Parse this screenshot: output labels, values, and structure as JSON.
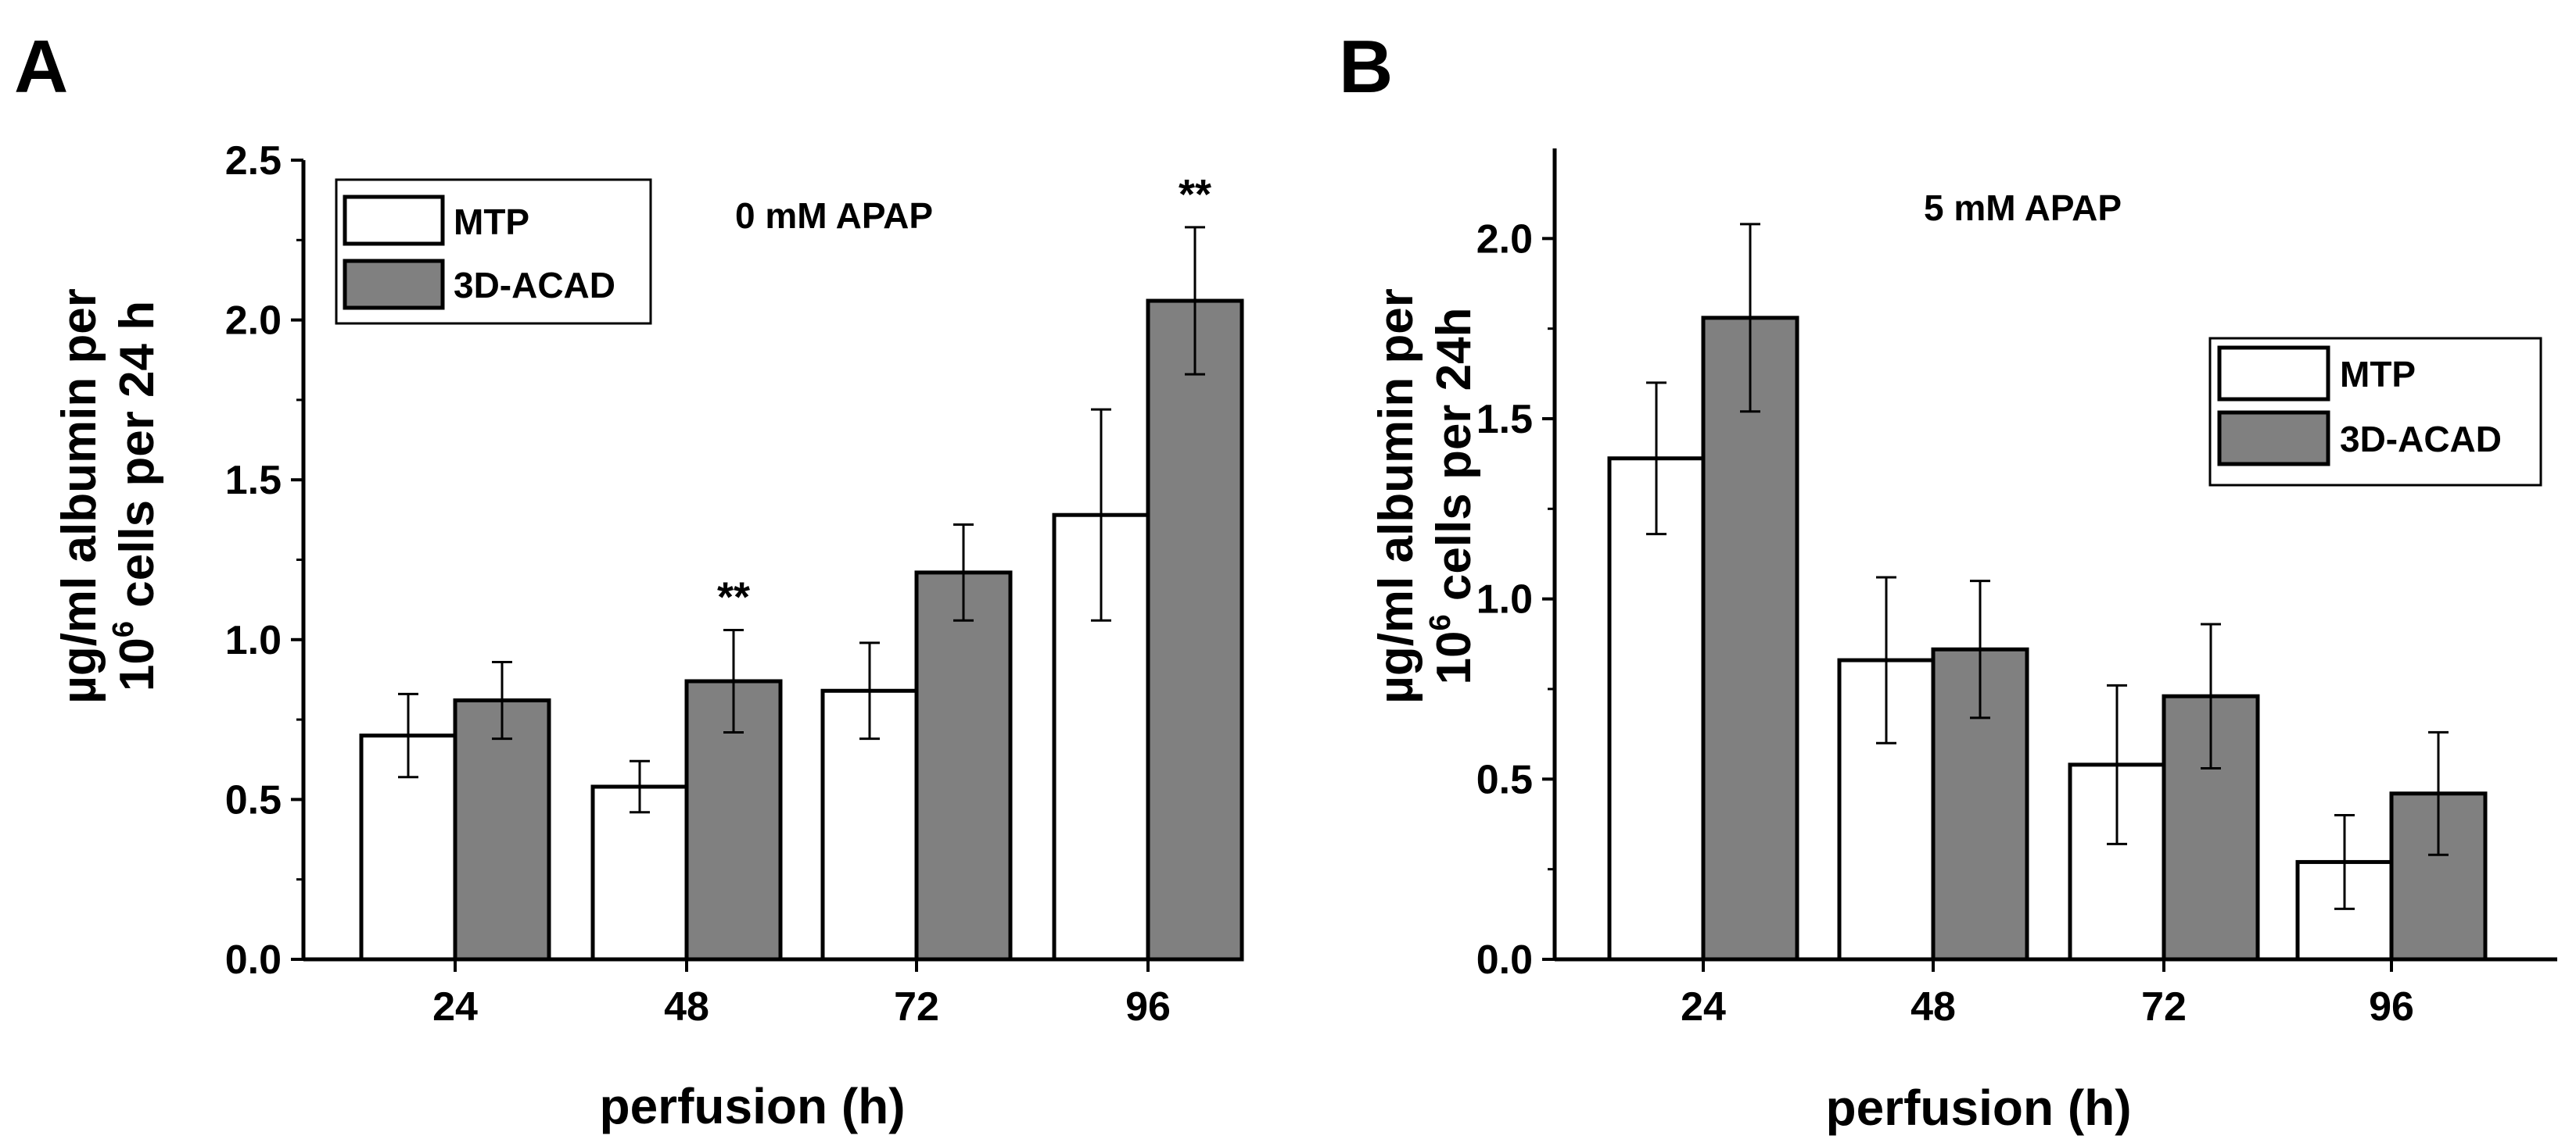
{
  "chart_data": [
    {
      "type": "bar",
      "panel": "A",
      "condition": "0 mM APAP",
      "categories": [
        "24",
        "48",
        "72",
        "96"
      ],
      "series": [
        {
          "name": "MTP",
          "values": [
            0.7,
            0.54,
            0.84,
            1.39
          ],
          "errors": [
            0.13,
            0.08,
            0.15,
            0.33
          ],
          "color": "#ffffff"
        },
        {
          "name": "3D-ACAD",
          "values": [
            0.81,
            0.87,
            1.21,
            2.06
          ],
          "errors": [
            0.12,
            0.16,
            0.15,
            0.23
          ],
          "color": "#808080"
        }
      ],
      "significance": [
        "",
        "**",
        "",
        "**"
      ],
      "xlabel": "perfusion (h)",
      "ylabel_line1": "µg/ml albumin per",
      "ylabel_line2_base": "10",
      "ylabel_line2_sup": "6",
      "ylabel_line2_rest": " cells per 24 h",
      "ylim": [
        0,
        2.5
      ],
      "yticks": [
        "0.0",
        "0.5",
        "1.0",
        "1.5",
        "2.0",
        "2.5"
      ],
      "legend_position": "top-left"
    },
    {
      "type": "bar",
      "panel": "B",
      "condition": "5 mM APAP",
      "categories": [
        "24",
        "48",
        "72",
        "96"
      ],
      "series": [
        {
          "name": "MTP",
          "values": [
            1.39,
            0.83,
            0.54,
            0.27
          ],
          "errors": [
            0.21,
            0.23,
            0.22,
            0.13
          ],
          "color": "#ffffff"
        },
        {
          "name": "3D-ACAD",
          "values": [
            1.78,
            0.86,
            0.73,
            0.46
          ],
          "errors": [
            0.26,
            0.19,
            0.2,
            0.17
          ],
          "color": "#808080"
        }
      ],
      "significance": [
        "",
        "",
        "",
        ""
      ],
      "xlabel": "perfusion (h)",
      "ylabel_line1": "µg/ml albumin per",
      "ylabel_line2_base": "10",
      "ylabel_line2_sup": "6",
      "ylabel_line2_rest": " cells per 24h",
      "ylim": [
        0,
        2.25
      ],
      "yticks": [
        "0.0",
        "0.5",
        "1.0",
        "1.5",
        "2.0"
      ],
      "legend_position": "right"
    }
  ]
}
